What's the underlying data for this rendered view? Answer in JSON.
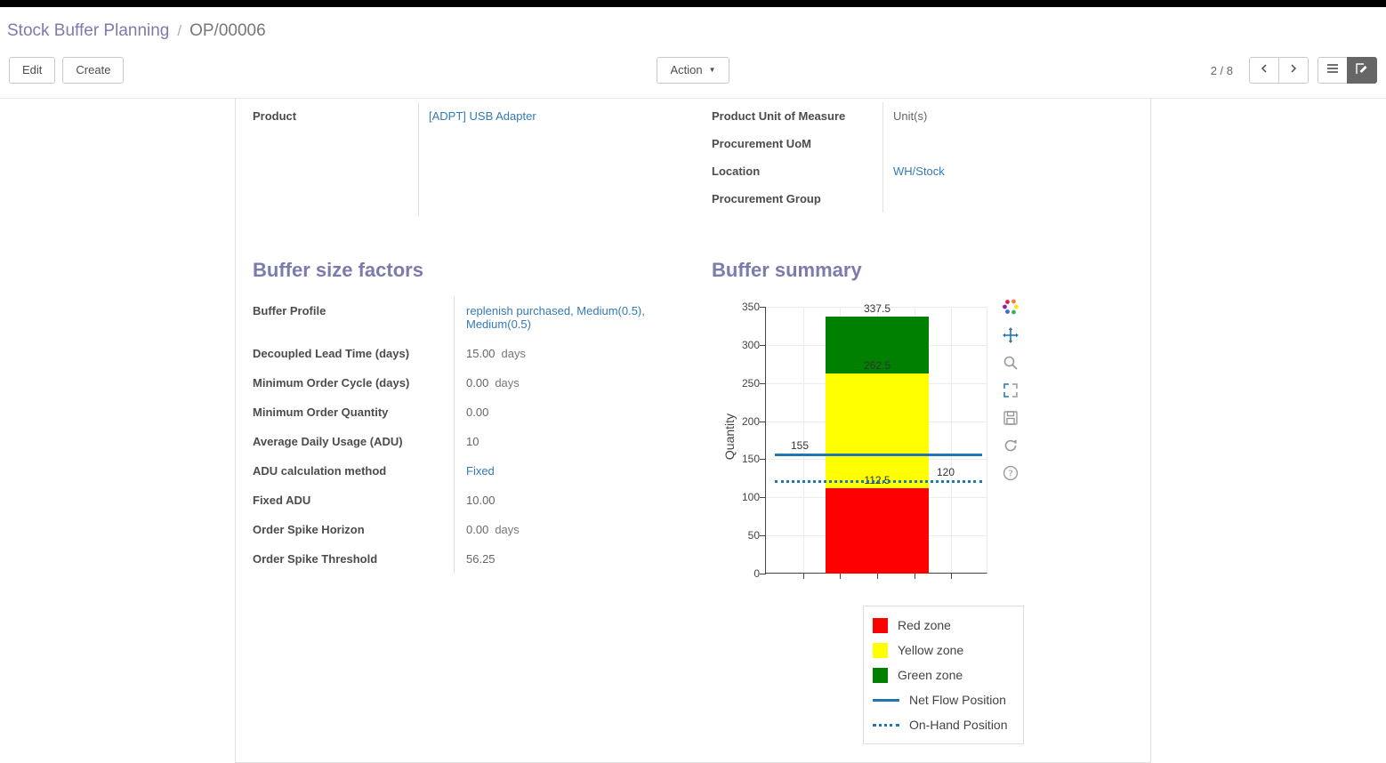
{
  "breadcrumb": {
    "parent": "Stock Buffer Planning",
    "separator": "/",
    "current": "OP/00006"
  },
  "control_panel": {
    "edit_label": "Edit",
    "create_label": "Create",
    "action_label": "Action",
    "pager_value": "2 / 8"
  },
  "icons": {
    "pager": [
      "chevron-left-icon",
      "chevron-right-icon"
    ],
    "view_switcher": [
      "list-view-icon",
      "form-view-icon"
    ],
    "modebar": [
      "plotly-logo-icon",
      "pan-icon",
      "zoom-icon",
      "autoscale-icon",
      "save-icon",
      "reset-axes-icon",
      "help-icon"
    ]
  },
  "colors": {
    "accent": "#7c7bad",
    "link": "#337ab7",
    "topbar": "#000000",
    "red_zone": "#ff0000",
    "yellow_zone": "#ffff00",
    "green_zone": "#008000",
    "flow_line": "#1f77b4"
  },
  "groups": {
    "left": {
      "rows": [
        {
          "label": "Product",
          "value": "[ADPT] USB Adapter",
          "link": true
        }
      ]
    },
    "right": {
      "rows": [
        {
          "label": "Product Unit of Measure",
          "value": "Unit(s)",
          "link": false
        },
        {
          "label": "Procurement UoM",
          "value": "",
          "link": false
        },
        {
          "label": "Location",
          "value": "WH/Stock",
          "link": true
        },
        {
          "label": "Procurement Group",
          "value": "",
          "link": false
        }
      ]
    }
  },
  "buffer_size_factors": {
    "title": "Buffer size factors",
    "rows": [
      {
        "label": "Buffer Profile",
        "value": "replenish purchased, Medium(0.5), Medium(0.5)",
        "link": true
      },
      {
        "label": "Decoupled Lead Time (days)",
        "value": "15.00",
        "unit": "days"
      },
      {
        "label": "Minimum Order Cycle (days)",
        "value": "0.00",
        "unit": "days"
      },
      {
        "label": "Minimum Order Quantity",
        "value": "0.00"
      },
      {
        "label": "Average Daily Usage (ADU)",
        "value": "10"
      },
      {
        "label": "ADU calculation method",
        "value": "Fixed",
        "link": true
      },
      {
        "label": "Fixed ADU",
        "value": "10.00"
      },
      {
        "label": "Order Spike Horizon",
        "value": "0.00",
        "unit": "days"
      },
      {
        "label": "Order Spike Threshold",
        "value": "56.25"
      }
    ]
  },
  "buffer_summary": {
    "title": "Buffer summary"
  },
  "chart_data": {
    "type": "bar",
    "title": "Buffer summary",
    "xlabel": "",
    "ylabel": "Quantity",
    "ylim": [
      0,
      350
    ],
    "yticks": [
      0,
      50,
      100,
      150,
      200,
      250,
      300,
      350
    ],
    "grid": true,
    "legend_position": "bottom-right",
    "zones": [
      {
        "name": "Red zone",
        "from": 0,
        "to": 112.5,
        "color": "#ff0000"
      },
      {
        "name": "Yellow zone",
        "from": 112.5,
        "to": 262.5,
        "color": "#ffff00"
      },
      {
        "name": "Green zone",
        "from": 262.5,
        "to": 337.5,
        "color": "#008000"
      }
    ],
    "zone_boundary_labels": [
      112.5,
      262.5,
      337.5
    ],
    "lines": [
      {
        "name": "Net Flow Position",
        "value": 155,
        "style": "solid",
        "color": "#1f77b4",
        "label_side": "left"
      },
      {
        "name": "On-Hand Position",
        "value": 120,
        "style": "dotted",
        "color": "#1f77b4",
        "label_side": "right"
      }
    ],
    "legend": [
      {
        "label": "Red zone",
        "swatch": "rect",
        "color": "#ff0000"
      },
      {
        "label": "Yellow zone",
        "swatch": "rect",
        "color": "#ffff00"
      },
      {
        "label": "Green zone",
        "swatch": "rect",
        "color": "#008000"
      },
      {
        "label": "Net Flow Position",
        "swatch": "line",
        "color": "#1f77b4"
      },
      {
        "label": "On-Hand Position",
        "swatch": "dotted",
        "color": "#1f77b4"
      }
    ]
  }
}
